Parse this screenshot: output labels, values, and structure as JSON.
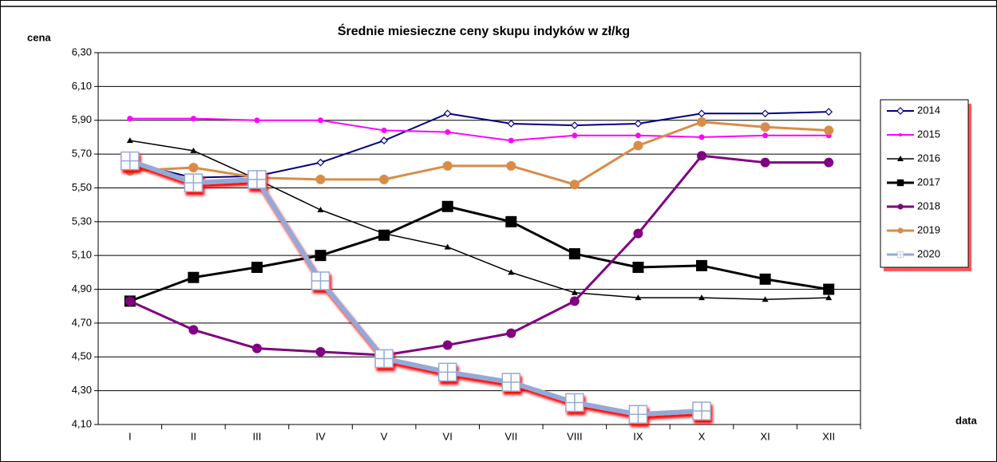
{
  "chart_data": {
    "type": "line",
    "title": "Średnie miesieczne ceny skupu indyków w zł/kg",
    "y_label": "cena",
    "x_label": "data",
    "categories": [
      "I",
      "II",
      "III",
      "IV",
      "V",
      "VI",
      "VII",
      "VIII",
      "IX",
      "X",
      "XI",
      "XII"
    ],
    "ylim": [
      4.1,
      6.3
    ],
    "yticks": [
      {
        "value": 4.1,
        "label": "4,10"
      },
      {
        "value": 4.3,
        "label": "4,30"
      },
      {
        "value": 4.5,
        "label": "4,50"
      },
      {
        "value": 4.7,
        "label": "4,70"
      },
      {
        "value": 4.9,
        "label": "4,90"
      },
      {
        "value": 5.1,
        "label": "5,10"
      },
      {
        "value": 5.3,
        "label": "5,30"
      },
      {
        "value": 5.5,
        "label": "5,50"
      },
      {
        "value": 5.7,
        "label": "5,70"
      },
      {
        "value": 5.9,
        "label": "5,90"
      },
      {
        "value": 6.1,
        "label": "6,10"
      },
      {
        "value": 6.3,
        "label": "6,30"
      }
    ],
    "grid": true,
    "legend": "right",
    "series": [
      {
        "name": "2014",
        "color": "#000080",
        "marker": "diamond",
        "width": 2,
        "values": [
          5.65,
          5.56,
          5.57,
          5.65,
          5.78,
          5.94,
          5.88,
          5.87,
          5.88,
          5.94,
          5.94,
          5.95
        ]
      },
      {
        "name": "2015",
        "color": "#ff00ff",
        "marker": "circle",
        "width": 2,
        "values": [
          5.91,
          5.91,
          5.9,
          5.9,
          5.84,
          5.83,
          5.78,
          5.81,
          5.81,
          5.8,
          5.81,
          5.81
        ]
      },
      {
        "name": "2016",
        "color": "#000000",
        "marker": "triangle",
        "width": 1.5,
        "values": [
          5.78,
          5.72,
          5.55,
          5.37,
          5.23,
          5.15,
          5.0,
          4.88,
          4.85,
          4.85,
          4.84,
          4.85
        ]
      },
      {
        "name": "2017",
        "color": "#000000",
        "marker": "square",
        "width": 3,
        "values": [
          4.83,
          4.97,
          5.03,
          5.1,
          5.22,
          5.39,
          5.3,
          5.11,
          5.03,
          5.04,
          4.96,
          4.9
        ]
      },
      {
        "name": "2018",
        "color": "#800080",
        "marker": "circle",
        "width": 3,
        "values": [
          4.83,
          4.66,
          4.55,
          4.53,
          4.51,
          4.57,
          4.64,
          4.83,
          5.23,
          5.69,
          5.65,
          5.65
        ]
      },
      {
        "name": "2019",
        "color": "#d98c47",
        "marker": "circle",
        "width": 3,
        "values": [
          5.6,
          5.62,
          5.56,
          5.55,
          5.55,
          5.63,
          5.63,
          5.52,
          5.75,
          5.89,
          5.86,
          5.84
        ]
      },
      {
        "name": "2020",
        "color": "#95a9d6",
        "marker": "plus",
        "width": 6,
        "values": [
          5.66,
          5.53,
          5.55,
          4.95,
          4.49,
          4.41,
          4.35,
          4.23,
          4.16,
          4.18,
          null,
          null
        ]
      }
    ]
  }
}
